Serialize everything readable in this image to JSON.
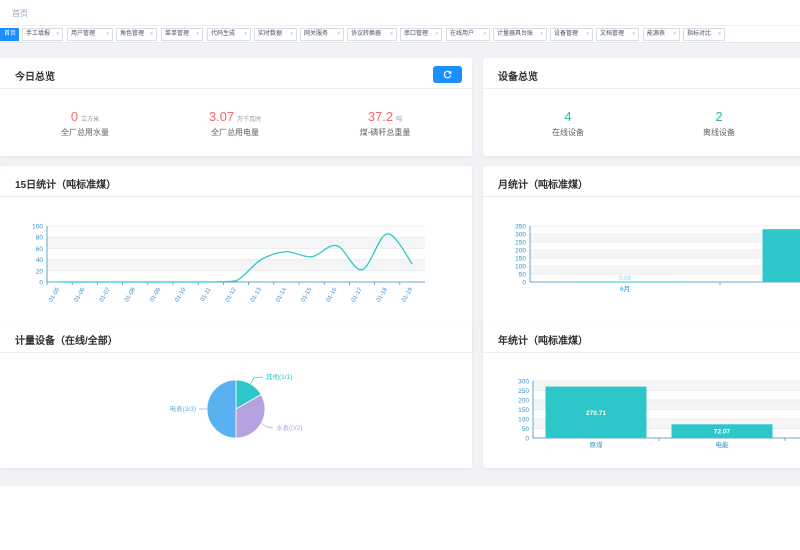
{
  "breadcrumb": {
    "home": "首页"
  },
  "tabs": [
    {
      "label": "首页",
      "active": true
    },
    {
      "label": "手工填报"
    },
    {
      "label": "用户管理"
    },
    {
      "label": "角色管理"
    },
    {
      "label": "菜单管理"
    },
    {
      "label": "代码生成"
    },
    {
      "label": "实时数据"
    },
    {
      "label": "网关服务"
    },
    {
      "label": "协议转换器"
    },
    {
      "label": "串口管理"
    },
    {
      "label": "在线用户"
    },
    {
      "label": "计量器具台账"
    },
    {
      "label": "设备管理"
    },
    {
      "label": "文档管理"
    },
    {
      "label": "能源表"
    },
    {
      "label": "指标对比"
    }
  ],
  "tab_close_glyph": "×",
  "today": {
    "title": "今日总览",
    "stats": [
      {
        "value": "0",
        "unit": "立方米",
        "label": "全厂总用水量"
      },
      {
        "value": "3.07",
        "unit": "万千瓦时",
        "label": "全厂总用电量"
      },
      {
        "value": "37.2",
        "unit": "吨",
        "label": "煤-磷秆总重量"
      }
    ]
  },
  "devices": {
    "title": "设备总览",
    "stats": [
      {
        "value": "4",
        "label": "在线设备"
      },
      {
        "value": "2",
        "label": "离线设备"
      }
    ]
  },
  "daily": {
    "title": "15日统计（吨标准煤）"
  },
  "monthly": {
    "title": "月统计（吨标准煤）"
  },
  "meters": {
    "title": "计量设备（在线/全部）"
  },
  "yearly": {
    "title": "年统计（吨标准煤）"
  },
  "colors": {
    "primary": "#1890ff",
    "value_red": "#f56c6c",
    "value_green": "#2eb8a6",
    "teal": "#2ec7c9",
    "pie_blue": "#5ab1ef",
    "pie_purple": "#b6a2de"
  },
  "chart_data": [
    {
      "type": "line",
      "x": [
        "01-05",
        "01-06",
        "01-07",
        "01-08",
        "01-09",
        "01-10",
        "01-11",
        "01-12",
        "01-13",
        "01-14",
        "01-15",
        "01-16",
        "01-17",
        "01-18",
        "01-19"
      ],
      "y": [
        0,
        0,
        0,
        0,
        0,
        0,
        0,
        2,
        40,
        54,
        45,
        65,
        22,
        86,
        32
      ],
      "ylim": [
        0,
        100
      ],
      "yticks": [
        0,
        20,
        40,
        60,
        80,
        100
      ],
      "smooth": true
    },
    {
      "type": "bar",
      "categories": [
        "6月",
        ""
      ],
      "values": [
        0.09,
        330
      ],
      "data_labels": [
        "0.09",
        ""
      ],
      "ylim": [
        0,
        350
      ],
      "yticks": [
        0,
        50,
        100,
        150,
        200,
        250,
        300,
        350
      ]
    },
    {
      "type": "pie",
      "slices": [
        {
          "label": "电表(3/3)",
          "value": 3
        },
        {
          "label": "水表(0/2)",
          "value": 2
        },
        {
          "label": "其他(1/1)",
          "value": 1
        }
      ]
    },
    {
      "type": "bar",
      "categories": [
        "原煤",
        "电能",
        ""
      ],
      "values": [
        270.71,
        72.07,
        0
      ],
      "data_labels": [
        "270.71",
        "72.07",
        ""
      ],
      "ylim": [
        0,
        300
      ],
      "yticks": [
        0,
        50,
        100,
        150,
        200,
        250,
        300
      ]
    }
  ]
}
